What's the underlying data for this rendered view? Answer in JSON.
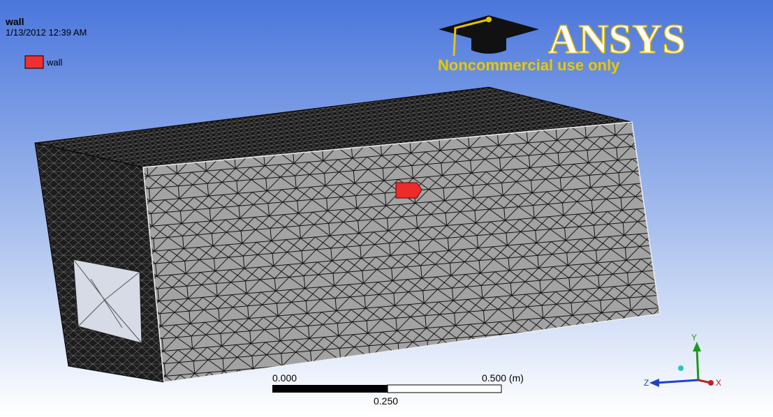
{
  "header": {
    "title": "wall",
    "timestamp": "1/13/2012 12:39 AM"
  },
  "legend": {
    "label": "wall"
  },
  "logo": {
    "brand": "ANSYS",
    "note": "Noncommercial use only"
  },
  "scale_bar": {
    "start": "0.000",
    "end": "0.500 (m)",
    "middle": "0.250"
  },
  "triad": {
    "y": "Y",
    "z": "Z",
    "x": "X"
  }
}
